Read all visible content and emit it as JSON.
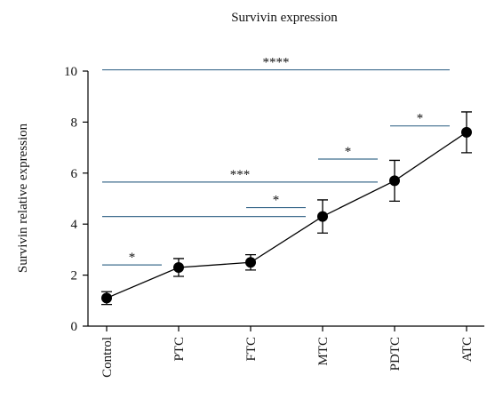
{
  "chart_data": {
    "type": "line",
    "title": "Survivin expression",
    "y_label": "Survivin relative expression",
    "categories": [
      "Control",
      "PTC",
      "FTC",
      "MTC",
      "PDTC",
      "ATC"
    ],
    "series": [
      {
        "name": "Survivin",
        "color": "#000000",
        "values": [
          1.1,
          2.3,
          2.5,
          4.3,
          5.7,
          7.6
        ],
        "errors": [
          0.25,
          0.35,
          0.3,
          0.65,
          0.8,
          0.8
        ]
      }
    ],
    "ylim": [
      0,
      10
    ],
    "yticks": [
      0,
      2,
      4,
      6,
      8,
      10
    ],
    "annotations": [
      {
        "text": "*",
        "y": 2.4,
        "from": "Control",
        "to": "PTC"
      },
      {
        "text": "*",
        "y": 4.65,
        "from": "FTC",
        "to": "MTC"
      },
      {
        "y": 4.3,
        "from": "Control",
        "to": "MTC"
      },
      {
        "text": "***",
        "y": 5.65,
        "from": "Control",
        "to": "PDTC"
      },
      {
        "text": "*",
        "y": 6.55,
        "from": "MTC",
        "to": "PDTC"
      },
      {
        "text": "*",
        "y": 7.85,
        "from": "PDTC",
        "to": "ATC"
      },
      {
        "text": "****",
        "y": 10.05,
        "from": "Control",
        "to": "ATC"
      }
    ],
    "annotation_color": "#3f6d8e"
  }
}
